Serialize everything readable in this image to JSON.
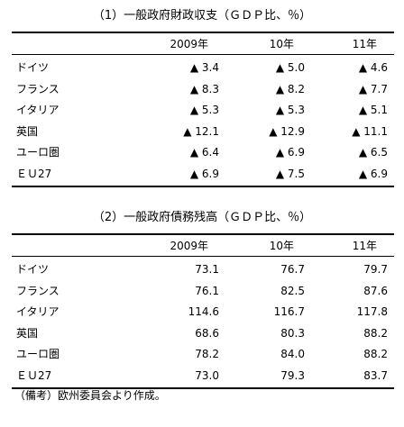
{
  "table1": {
    "title": "（1）一般政府財政収支（ＧＤＰ比、％）",
    "columns": [
      "2009年",
      "10年",
      "11年"
    ],
    "rows": [
      [
        "ドイツ",
        "▲ 3.4",
        "▲ 5.0",
        "▲ 4.6"
      ],
      [
        "フランス",
        "▲ 8.3",
        "▲ 8.2",
        "▲ 7.7"
      ],
      [
        "イタリア",
        "▲ 5.3",
        "▲ 5.3",
        "▲ 5.1"
      ],
      [
        "英国",
        "▲ 12.1",
        "▲ 12.9",
        "▲ 11.1"
      ],
      [
        "ユーロ圏",
        "▲ 6.4",
        "▲ 6.9",
        "▲ 6.5"
      ],
      [
        "ＥＵ27",
        "▲ 6.9",
        "▲ 7.5",
        "▲ 6.9"
      ]
    ]
  },
  "table2": {
    "title": "（2）一般政府債務残高（ＧＤＰ比、％）",
    "columns": [
      "2009年",
      "10年",
      "11年"
    ],
    "rows": [
      [
        "ドイツ",
        "73.1",
        "76.7",
        "79.7"
      ],
      [
        "フランス",
        "76.1",
        "82.5",
        "87.6"
      ],
      [
        "イタリア",
        "114.6",
        "116.7",
        "117.8"
      ],
      [
        "英国",
        "68.6",
        "80.3",
        "88.2"
      ],
      [
        "ユーロ圏",
        "78.2",
        "84.0",
        "88.2"
      ],
      [
        "ＥＵ27",
        "73.0",
        "79.3",
        "83.7"
      ]
    ]
  },
  "note": "（備考）欧州委員会より作成。"
}
